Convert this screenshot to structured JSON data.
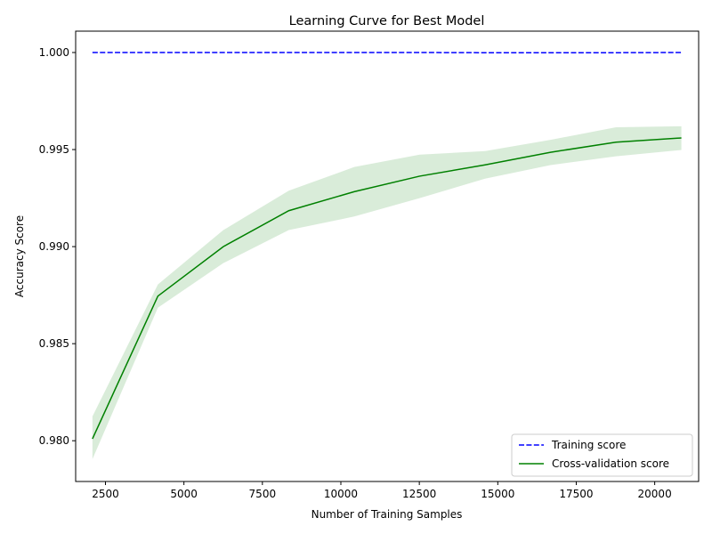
{
  "chart_data": {
    "type": "line",
    "title": "Learning Curve for Best Model",
    "xlabel": "Number of Training Samples",
    "ylabel": "Accuracy Score",
    "xlim": [
      1550,
      21400
    ],
    "ylim": [
      0.9779,
      1.0011
    ],
    "xticks": [
      2500,
      5000,
      7500,
      10000,
      12500,
      15000,
      17500,
      20000
    ],
    "xtick_labels": [
      "2500",
      "5000",
      "7500",
      "10000",
      "12500",
      "15000",
      "17500",
      "20000"
    ],
    "yticks": [
      0.98,
      0.985,
      0.99,
      0.995,
      1.0
    ],
    "ytick_labels": [
      "0.980",
      "0.985",
      "0.990",
      "0.995",
      "1.000"
    ],
    "grid": false,
    "legend_position": "bottom-right",
    "x": [
      2085,
      4170,
      6255,
      8340,
      10425,
      12510,
      14595,
      16680,
      18765,
      20850
    ],
    "series": [
      {
        "name": "Training score",
        "color": "#0000ff",
        "style": "dashed",
        "values": [
          1.0,
          1.0,
          1.0,
          1.0,
          1.0,
          1.0,
          0.99999,
          0.99999,
          0.99999,
          1.0
        ]
      },
      {
        "name": "Cross-validation score",
        "color": "#008000",
        "style": "solid",
        "values": [
          0.9801,
          0.98745,
          0.99,
          0.99185,
          0.99283,
          0.99363,
          0.99421,
          0.99486,
          0.99538,
          0.9956
        ],
        "band_lower": [
          0.97905,
          0.98685,
          0.98915,
          0.99085,
          0.99155,
          0.9925,
          0.9935,
          0.9942,
          0.99465,
          0.99498
        ],
        "band_upper": [
          0.98125,
          0.98805,
          0.99085,
          0.99288,
          0.9941,
          0.99474,
          0.99492,
          0.9955,
          0.99615,
          0.9962
        ],
        "band_color": "#008000"
      }
    ]
  }
}
